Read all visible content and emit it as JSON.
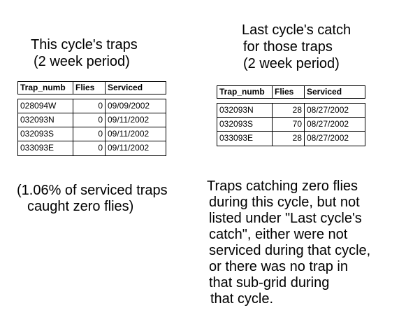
{
  "left_heading": {
    "line1": "This cycle's traps",
    "line2": "(2 week period)"
  },
  "right_heading": {
    "line1": "Last cycle's catch",
    "line2": "for those traps",
    "line3": "(2 week period)"
  },
  "table_columns": [
    "Trap_numb",
    "Flies",
    "Serviced"
  ],
  "this_cycle_rows": [
    {
      "trap": "028094W",
      "flies": "0",
      "serviced": "09/09/2002"
    },
    {
      "trap": "032093N",
      "flies": "0",
      "serviced": "09/11/2002"
    },
    {
      "trap": "032093S",
      "flies": "0",
      "serviced": "09/11/2002"
    },
    {
      "trap": "033093E",
      "flies": "0",
      "serviced": "09/11/2002"
    }
  ],
  "last_cycle_rows": [
    {
      "trap": "032093N",
      "flies": "28",
      "serviced": "08/27/2002"
    },
    {
      "trap": "032093S",
      "flies": "70",
      "serviced": "08/27/2002"
    },
    {
      "trap": "033093E",
      "flies": "28",
      "serviced": "08/27/2002"
    }
  ],
  "left_note": {
    "line1": "(1.06% of serviced traps",
    "line2": "caught zero flies)"
  },
  "right_note": {
    "lines": [
      "Traps catching zero flies",
      "during this cycle, but not",
      "listed under \"Last cycle's",
      "catch\", either were not",
      "serviced during that cycle,",
      "or there was no trap in",
      "that sub-grid during",
      "that cycle."
    ]
  }
}
